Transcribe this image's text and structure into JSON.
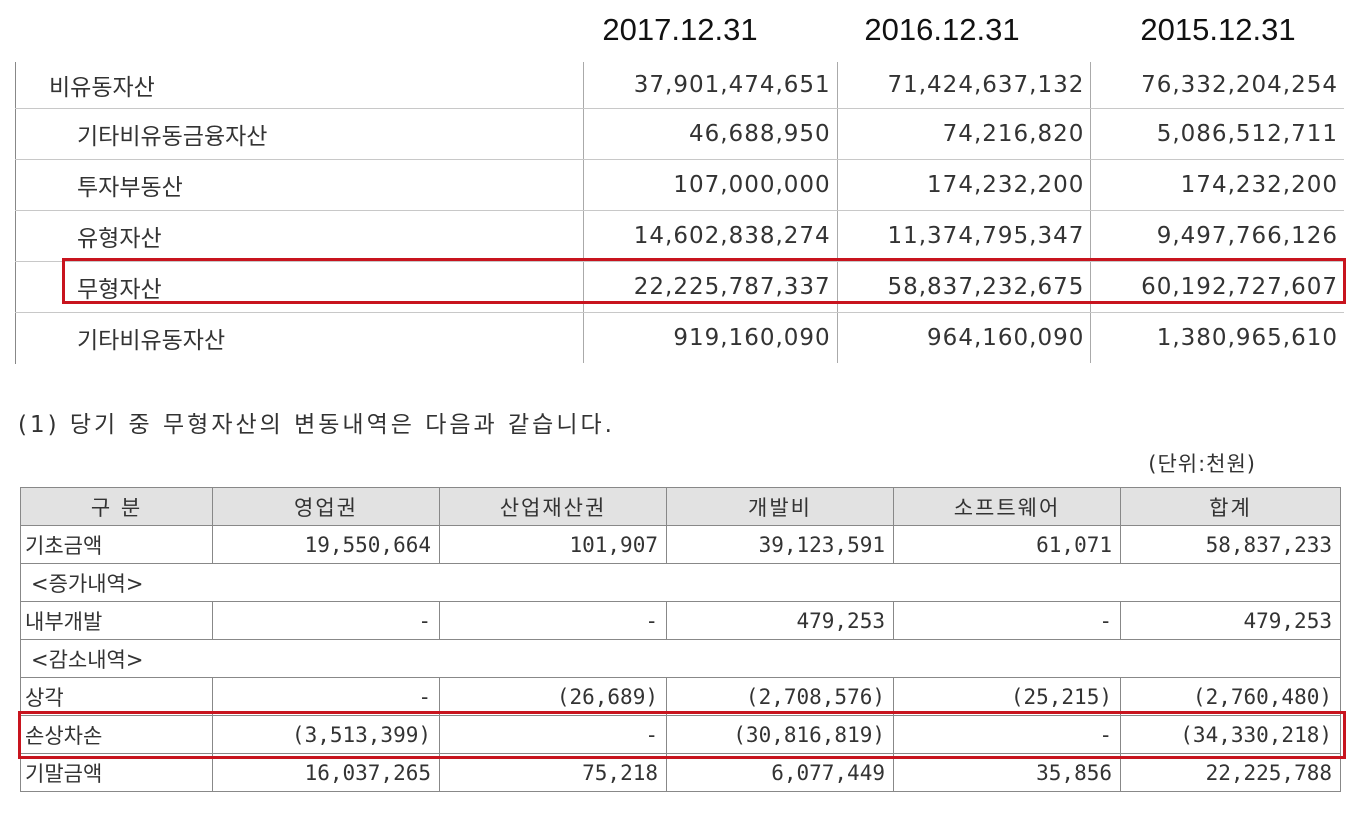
{
  "top_table": {
    "headers": [
      "2017.12.31",
      "2016.12.31",
      "2015.12.31"
    ],
    "rows": [
      {
        "label": "비유동자산",
        "values": [
          "37,901,474,651",
          "71,424,637,132",
          "76,332,204,254"
        ]
      },
      {
        "label": "기타비유동금융자산",
        "values": [
          "46,688,950",
          "74,216,820",
          "5,086,512,711"
        ]
      },
      {
        "label": "투자부동산",
        "values": [
          "107,000,000",
          "174,232,200",
          "174,232,200"
        ]
      },
      {
        "label": "유형자산",
        "values": [
          "14,602,838,274",
          "11,374,795,347",
          "9,497,766,126"
        ]
      },
      {
        "label": "무형자산",
        "values": [
          "22,225,787,337",
          "58,837,232,675",
          "60,192,727,607"
        ]
      },
      {
        "label": "기타비유동자산",
        "values": [
          "919,160,090",
          "964,160,090",
          "1,380,965,610"
        ]
      }
    ],
    "highlight_color": "#c8141e"
  },
  "note": "(1) 당기 중 무형자산의 변동내역은 다음과 같습니다.",
  "unit": "(단위:천원)",
  "bottom_table": {
    "headers": [
      "구 분",
      "영업권",
      "산업재산권",
      "개발비",
      "소프트웨어",
      "합계"
    ],
    "rows": [
      {
        "label": "기초금액",
        "values": [
          "19,550,664",
          "101,907",
          "39,123,591",
          "61,071",
          "58,837,233"
        ]
      },
      {
        "section": "<증가내역>"
      },
      {
        "label": "내부개발",
        "values": [
          "-",
          "-",
          "479,253",
          "-",
          "479,253"
        ]
      },
      {
        "section": "<감소내역>"
      },
      {
        "label": "상각",
        "values": [
          "-",
          "(26,689)",
          "(2,708,576)",
          "(25,215)",
          "(2,760,480)"
        ]
      },
      {
        "label": "손상차손",
        "values": [
          "(3,513,399)",
          "-",
          "(30,816,819)",
          "-",
          "(34,330,218)"
        ]
      },
      {
        "label": "기말금액",
        "values": [
          "16,037,265",
          "75,218",
          "6,077,449",
          "35,856",
          "22,225,788"
        ]
      }
    ],
    "header_bg": "#e2e2e2"
  }
}
